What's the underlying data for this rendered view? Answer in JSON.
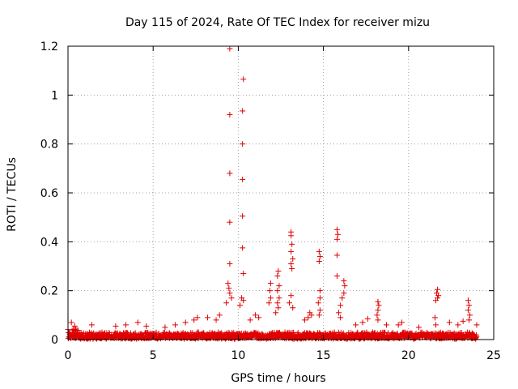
{
  "chart_data": {
    "type": "scatter",
    "title": "Day 115 of 2024, Rate Of TEC Index for receiver mizu",
    "xlabel": "GPS time / hours",
    "ylabel": "ROTI / TECUs",
    "xlim": [
      0,
      25
    ],
    "ylim": [
      0,
      1.2
    ],
    "xticks": [
      0,
      5,
      10,
      15,
      20,
      25
    ],
    "xtick_labels": [
      "0",
      "5",
      "10",
      "15",
      "20",
      "25"
    ],
    "yticks": [
      0,
      0.2,
      0.4,
      0.6,
      0.8,
      1.0,
      1.2
    ],
    "ytick_labels": [
      "0",
      "0.2",
      "0.4",
      "0.6",
      "0.8",
      "1",
      "1.2"
    ],
    "grid": true,
    "marker": "plus",
    "marker_color": "#e00000",
    "baseline_range": [
      0.0,
      0.05
    ],
    "series": [
      {
        "name": "ROTI",
        "points": [
          [
            9.5,
            1.19
          ],
          [
            10.3,
            1.065
          ],
          [
            9.5,
            0.92
          ],
          [
            10.25,
            0.935
          ],
          [
            10.25,
            0.8
          ],
          [
            9.5,
            0.68
          ],
          [
            10.25,
            0.655
          ],
          [
            10.25,
            0.505
          ],
          [
            9.5,
            0.48
          ],
          [
            10.25,
            0.375
          ],
          [
            9.5,
            0.31
          ],
          [
            10.3,
            0.27
          ],
          [
            9.4,
            0.23
          ],
          [
            9.45,
            0.21
          ],
          [
            9.5,
            0.19
          ],
          [
            10.2,
            0.17
          ],
          [
            10.3,
            0.16
          ],
          [
            10.1,
            0.14
          ],
          [
            9.3,
            0.15
          ],
          [
            9.6,
            0.17
          ],
          [
            13.1,
            0.44
          ],
          [
            13.1,
            0.425
          ],
          [
            13.15,
            0.39
          ],
          [
            13.1,
            0.36
          ],
          [
            13.2,
            0.33
          ],
          [
            13.1,
            0.31
          ],
          [
            13.15,
            0.29
          ],
          [
            13.1,
            0.18
          ],
          [
            13.0,
            0.15
          ],
          [
            13.2,
            0.13
          ],
          [
            15.8,
            0.45
          ],
          [
            15.85,
            0.43
          ],
          [
            15.8,
            0.41
          ],
          [
            15.8,
            0.345
          ],
          [
            15.8,
            0.26
          ],
          [
            14.75,
            0.36
          ],
          [
            14.8,
            0.34
          ],
          [
            14.75,
            0.32
          ],
          [
            14.8,
            0.2
          ],
          [
            14.8,
            0.17
          ],
          [
            14.7,
            0.15
          ],
          [
            14.8,
            0.12
          ],
          [
            14.75,
            0.1
          ],
          [
            12.35,
            0.28
          ],
          [
            12.3,
            0.26
          ],
          [
            12.4,
            0.22
          ],
          [
            12.3,
            0.2
          ],
          [
            12.4,
            0.17
          ],
          [
            12.3,
            0.15
          ],
          [
            12.35,
            0.13
          ],
          [
            12.2,
            0.11
          ],
          [
            11.9,
            0.23
          ],
          [
            11.85,
            0.2
          ],
          [
            11.9,
            0.17
          ],
          [
            11.8,
            0.15
          ],
          [
            16.2,
            0.24
          ],
          [
            16.25,
            0.22
          ],
          [
            16.2,
            0.19
          ],
          [
            16.1,
            0.17
          ],
          [
            16.0,
            0.14
          ],
          [
            15.9,
            0.11
          ],
          [
            16.0,
            0.09
          ],
          [
            18.2,
            0.155
          ],
          [
            18.25,
            0.14
          ],
          [
            18.2,
            0.12
          ],
          [
            18.15,
            0.1
          ],
          [
            18.2,
            0.08
          ],
          [
            21.7,
            0.205
          ],
          [
            21.65,
            0.19
          ],
          [
            21.7,
            0.17
          ],
          [
            21.75,
            0.18
          ],
          [
            21.6,
            0.16
          ],
          [
            21.55,
            0.09
          ],
          [
            21.6,
            0.06
          ],
          [
            23.5,
            0.16
          ],
          [
            23.55,
            0.14
          ],
          [
            23.5,
            0.12
          ],
          [
            23.6,
            0.1
          ],
          [
            23.55,
            0.08
          ],
          [
            14.2,
            0.11
          ],
          [
            14.1,
            0.09
          ],
          [
            14.3,
            0.1
          ],
          [
            13.9,
            0.08
          ],
          [
            11.2,
            0.09
          ],
          [
            11.0,
            0.1
          ],
          [
            10.7,
            0.08
          ],
          [
            8.9,
            0.1
          ],
          [
            8.7,
            0.08
          ],
          [
            8.2,
            0.09
          ],
          [
            7.6,
            0.09
          ],
          [
            7.4,
            0.08
          ],
          [
            6.9,
            0.07
          ],
          [
            6.3,
            0.06
          ],
          [
            5.7,
            0.05
          ],
          [
            4.1,
            0.07
          ],
          [
            4.6,
            0.055
          ],
          [
            3.4,
            0.06
          ],
          [
            2.8,
            0.055
          ],
          [
            1.4,
            0.06
          ],
          [
            0.2,
            0.07
          ],
          [
            0.4,
            0.055
          ],
          [
            19.6,
            0.07
          ],
          [
            19.4,
            0.06
          ],
          [
            20.6,
            0.05
          ],
          [
            22.4,
            0.07
          ],
          [
            22.9,
            0.06
          ],
          [
            23.2,
            0.075
          ],
          [
            24.0,
            0.06
          ],
          [
            17.3,
            0.07
          ],
          [
            17.6,
            0.085
          ],
          [
            18.7,
            0.06
          ],
          [
            16.9,
            0.06
          ]
        ]
      }
    ]
  }
}
